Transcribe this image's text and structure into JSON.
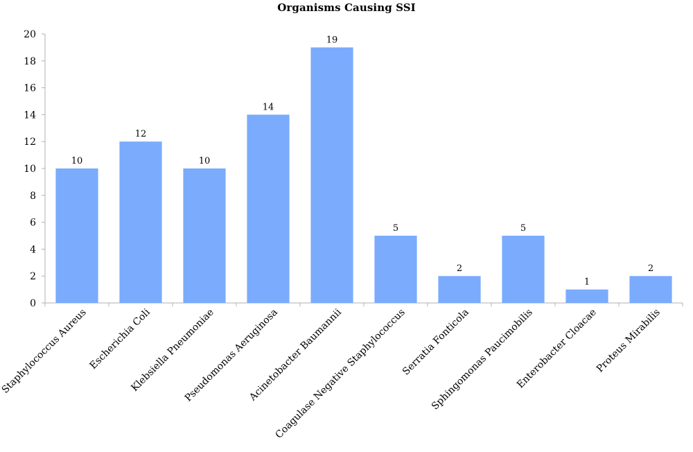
{
  "chart_data": {
    "type": "bar",
    "title": "Organisms Causing SSI",
    "xlabel": "",
    "ylabel": "",
    "categories": [
      "Staphylococcus Aureus",
      "Escherichia Coli",
      "Klebsiella Pneumoniae",
      "Pseudomonas Aeruginosa",
      "Acinetobacter Baumannii",
      "Coagulase Negative Staphylococcus",
      "Serratia Fonticola",
      "Sphingomonas Paucimobilis",
      "Enterobacter Cloacae",
      "Proteus Mirabilis"
    ],
    "values": [
      10,
      12,
      10,
      14,
      19,
      5,
      2,
      5,
      1,
      2
    ],
    "ylim": [
      0,
      20
    ],
    "yticks": [
      0,
      2,
      4,
      6,
      8,
      10,
      12,
      14,
      16,
      18,
      20
    ],
    "grid": false,
    "legend": "none",
    "bar_color": "#7aabfd",
    "axis_color": "#b0b0b0"
  }
}
